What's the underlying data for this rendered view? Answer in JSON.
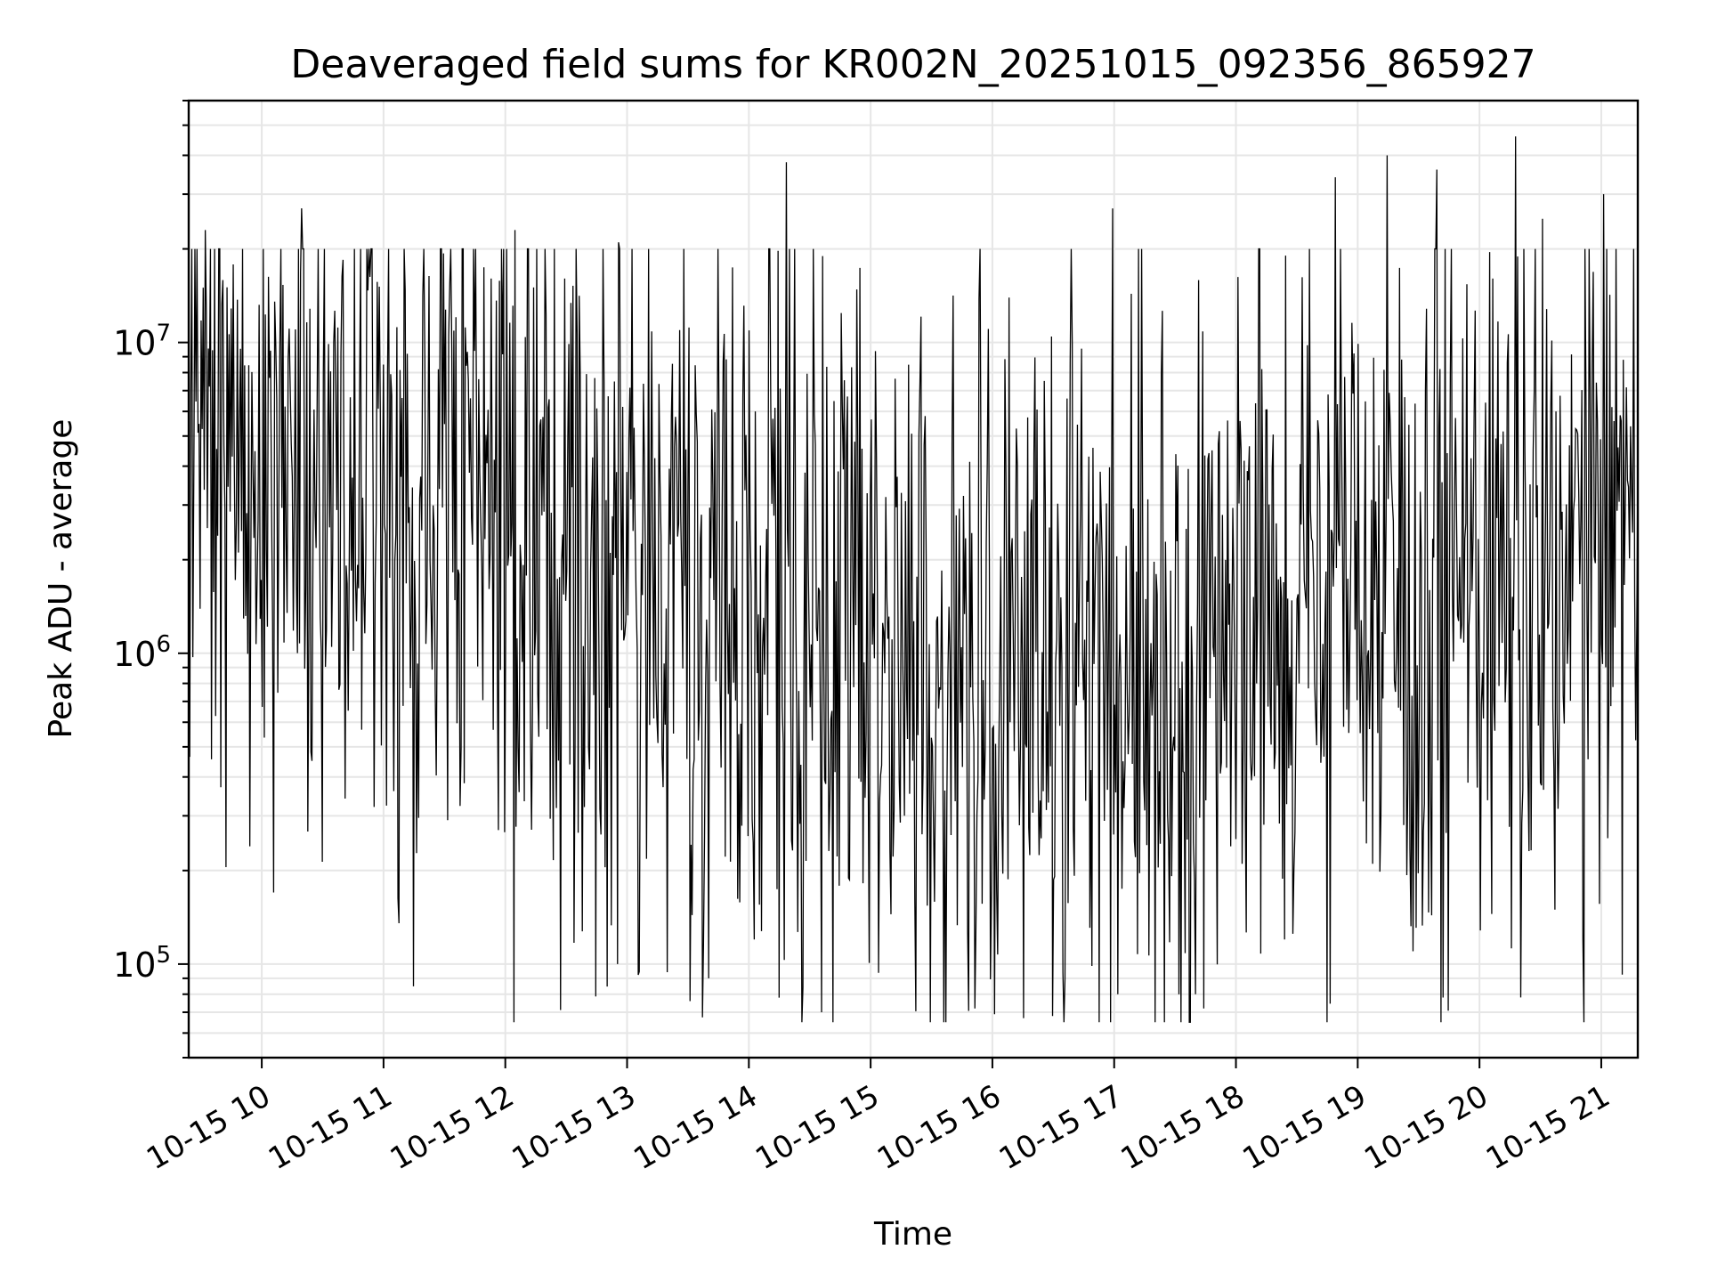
{
  "chart_data": {
    "type": "line",
    "title": "Deaveraged field sums for KR002N_20251015_092356_865927",
    "xlabel": "Time",
    "ylabel": "Peak ADU - average",
    "yscale": "log",
    "ylim": [
      50000,
      60000000
    ],
    "xlim_hours": [
      9.4,
      21.3
    ],
    "grid": true,
    "legend": "none",
    "line_color": "#000000",
    "grid_color": "#e6e6e6",
    "x_ticks": [
      {
        "value": 10,
        "label": "10-15 10"
      },
      {
        "value": 11,
        "label": "10-15 11"
      },
      {
        "value": 12,
        "label": "10-15 12"
      },
      {
        "value": 13,
        "label": "10-15 13"
      },
      {
        "value": 14,
        "label": "10-15 14"
      },
      {
        "value": 15,
        "label": "10-15 15"
      },
      {
        "value": 16,
        "label": "10-15 16"
      },
      {
        "value": 17,
        "label": "10-15 17"
      },
      {
        "value": 18,
        "label": "10-15 18"
      },
      {
        "value": 19,
        "label": "10-15 19"
      },
      {
        "value": 20,
        "label": "10-15 20"
      },
      {
        "value": 21,
        "label": "10-15 21"
      }
    ],
    "y_ticks": [
      {
        "value": 100000,
        "base": "10",
        "exp": "5"
      },
      {
        "value": 1000000,
        "base": "10",
        "exp": "6"
      },
      {
        "value": 10000000,
        "base": "10",
        "exp": "7"
      }
    ],
    "series": [
      {
        "name": "Peak ADU - average",
        "samples": 1400,
        "baseline_profile": {
          "x": [
            9.4,
            10.0,
            11.0,
            12.0,
            13.0,
            14.0,
            15.0,
            16.0,
            17.0,
            18.0,
            19.0,
            20.0,
            20.6,
            21.0,
            21.3
          ],
          "y": [
            5000000,
            4200000,
            3800000,
            3500000,
            1800000,
            1700000,
            1300000,
            1000000,
            1100000,
            1600000,
            1900000,
            1800000,
            1500000,
            3000000,
            2500000
          ]
        },
        "notable_peaks": [
          {
            "x": 9.54,
            "y": 23000000
          },
          {
            "x": 10.33,
            "y": 27000000
          },
          {
            "x": 12.08,
            "y": 23000000
          },
          {
            "x": 12.93,
            "y": 21000000
          },
          {
            "x": 14.31,
            "y": 38000000
          },
          {
            "x": 16.99,
            "y": 27000000
          },
          {
            "x": 18.82,
            "y": 34000000
          },
          {
            "x": 19.24,
            "y": 40000000
          },
          {
            "x": 19.65,
            "y": 36000000
          },
          {
            "x": 20.3,
            "y": 46000000
          },
          {
            "x": 20.52,
            "y": 25000000
          },
          {
            "x": 21.02,
            "y": 30000000
          }
        ],
        "notable_troughs": [
          {
            "x": 10.1,
            "y": 170000
          },
          {
            "x": 12.92,
            "y": 100000
          },
          {
            "x": 13.52,
            "y": 76000
          },
          {
            "x": 13.67,
            "y": 90000
          },
          {
            "x": 14.25,
            "y": 78000
          },
          {
            "x": 14.6,
            "y": 70000
          },
          {
            "x": 15.86,
            "y": 72000
          },
          {
            "x": 16.26,
            "y": 67000
          },
          {
            "x": 16.6,
            "y": 90000
          },
          {
            "x": 17.03,
            "y": 80000
          },
          {
            "x": 18.4,
            "y": 120000
          },
          {
            "x": 19.45,
            "y": 110000
          },
          {
            "x": 20.1,
            "y": 145000
          }
        ]
      }
    ]
  }
}
